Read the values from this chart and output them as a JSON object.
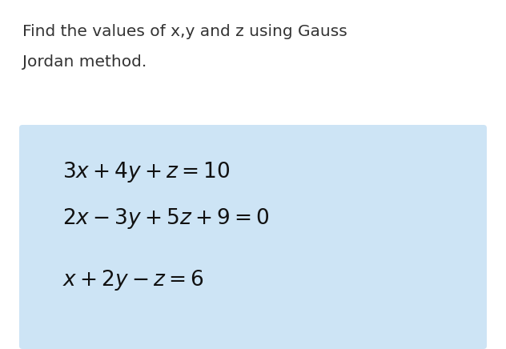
{
  "title_line1": "Find the values of x,y and z using Gauss",
  "title_line2": "Jordan method.",
  "title_fontsize": 14.5,
  "title_color": "#333333",
  "eq1": "$3x + 4y + z = 10$",
  "eq2": "$2x - 3y + 5z + 9 = 0$",
  "eq3": "$x + 2y - z = 6$",
  "eq_fontsize": 19,
  "eq_color": "#111111",
  "box_color": "#cde4f5",
  "background_color": "#ffffff",
  "fig_width": 6.32,
  "fig_height": 4.36,
  "dpi": 100
}
